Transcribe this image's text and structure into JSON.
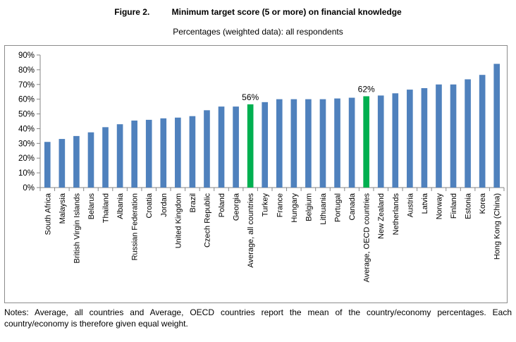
{
  "figure": {
    "number": "Figure 2.",
    "title": "Minimum target score (5 or more) on financial knowledge",
    "subtitle": "Percentages (weighted data): all respondents"
  },
  "notes": "Notes: Average, all countries and Average, OECD countries report the mean of the country/economy percentages. Each country/economy is therefore given equal weight.",
  "chart_data": {
    "type": "bar",
    "title": "Minimum target score (5 or more) on financial knowledge",
    "subtitle": "Percentages (weighted data): all respondents",
    "xlabel": "",
    "ylabel": "",
    "ylim": [
      0,
      90
    ],
    "yticks": [
      0,
      10,
      20,
      30,
      40,
      50,
      60,
      70,
      80,
      90
    ],
    "ytick_labels": [
      "0%",
      "10%",
      "20%",
      "30%",
      "40%",
      "50%",
      "60%",
      "70%",
      "80%",
      "90%"
    ],
    "grid": false,
    "legend": "none",
    "colors": {
      "default": "#4f81bd",
      "highlight": "#00b050"
    },
    "categories": [
      "South Africa",
      "Malaysia",
      "British Virgin Islands",
      "Belarus",
      "Thailand",
      "Albania",
      "Russian Federation",
      "Croatia",
      "Jordan",
      "United Kingdom",
      "Brazil",
      "Czech Republic",
      "Poland",
      "Georgia",
      "Average, all countries",
      "Turkey",
      "France",
      "Hungary",
      "Belgium",
      "Lithuania",
      "Portugal",
      "Canada",
      "Average, OECD countries",
      "New Zealand",
      "Netherlands",
      "Austria",
      "Latvia",
      "Norway",
      "Finland",
      "Estonia",
      "Korea",
      "Hong Kong (China)"
    ],
    "values": [
      31,
      33,
      35,
      37.5,
      41,
      43,
      45.5,
      46,
      47,
      47.5,
      48.5,
      52.5,
      55,
      55,
      56.5,
      58,
      60,
      60,
      60,
      60,
      60.5,
      61,
      62,
      62.5,
      64,
      66.5,
      67.5,
      70,
      70,
      73.5,
      76.5,
      84
    ],
    "highlight": [
      14,
      22
    ],
    "data_labels": [
      {
        "index": 14,
        "text": "56%"
      },
      {
        "index": 22,
        "text": "62%"
      }
    ]
  }
}
